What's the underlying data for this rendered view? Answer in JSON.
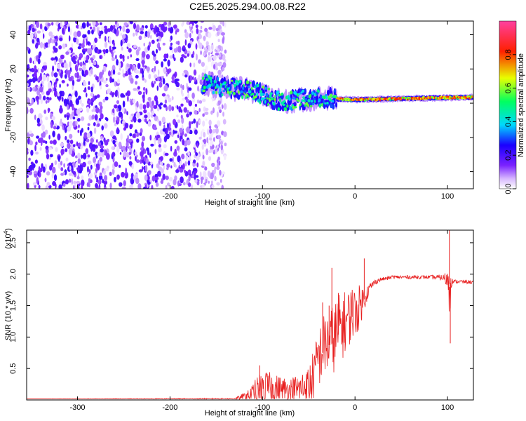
{
  "title": "C2E5.2025.294.00.08.R22",
  "chart_data": [
    {
      "type": "heatmap",
      "title": "C2E5.2025.294.00.08.R22",
      "xlabel": "Height of straight line (km)",
      "ylabel": "Frequency (Hz)",
      "xlim": [
        -355,
        128
      ],
      "ylim": [
        -50,
        48
      ],
      "x_ticks": [
        -300,
        -200,
        -100,
        0,
        100
      ],
      "y_ticks": [
        -40,
        -20,
        0,
        20,
        40
      ],
      "colorbar": {
        "label": "Normalized spectral amplitude",
        "range": [
          0,
          1
        ],
        "ticks": [
          0.0,
          0.2,
          0.4,
          0.6,
          0.8
        ],
        "tick_labels": [
          "0.0",
          "0.2",
          "0.4",
          "0.6",
          "0.8"
        ],
        "colors": [
          "#ffffff",
          "#d8b8ff",
          "#7a22ff",
          "#1a00ff",
          "#00d8ff",
          "#00ff60",
          "#e8ff00",
          "#ff2000",
          "#ff40a0"
        ]
      },
      "regions": [
        {
          "name": "noise",
          "x": [
            -355,
            -140
          ],
          "y": [
            -50,
            48
          ],
          "amplitude": [
            0.02,
            0.22
          ]
        },
        {
          "name": "signal",
          "x": [
            -165,
            128
          ],
          "center_freq_hz": [
            [
              -165,
              12
            ],
            [
              -140,
              9
            ],
            [
              -120,
              8
            ],
            [
              -100,
              5
            ],
            [
              -80,
              1
            ],
            [
              -60,
              2
            ],
            [
              -40,
              3
            ],
            [
              -20,
              2.5
            ],
            [
              0,
              2
            ],
            [
              40,
              2.5
            ],
            [
              80,
              3
            ],
            [
              128,
              3.5
            ]
          ],
          "peak_amplitude": 0.9
        }
      ]
    },
    {
      "type": "line",
      "xlabel": "Height of straight line (km)",
      "ylabel": "SNR (10 * v/v)",
      "y_multiplier_label": "(x10",
      "y_multiplier_exp": "4",
      "y_multiplier_close": ")",
      "xlim": [
        -355,
        128
      ],
      "ylim": [
        0,
        2.7
      ],
      "x_ticks": [
        -300,
        -200,
        -100,
        0,
        100
      ],
      "y_ticks": [
        0.5,
        1.0,
        1.5,
        2.0,
        2.5
      ],
      "y_tick_labels": [
        "0.5",
        "1.0",
        "1.5",
        "2.0",
        "2.5"
      ],
      "color": "#e82020",
      "series": [
        {
          "name": "SNR",
          "envelope": {
            "x": [
              -355,
              -130,
              -115,
              -105,
              -100,
              -90,
              -80,
              -70,
              -60,
              -50,
              -45,
              -40,
              -35,
              -30,
              -25,
              -20,
              -15,
              -10,
              -5,
              0,
              5,
              10,
              15,
              20,
              25,
              30,
              35,
              40,
              60,
              80,
              95,
              100,
              102,
              104,
              106,
              110,
              128
            ],
            "base": [
              0.02,
              0.02,
              0.05,
              0.12,
              0.18,
              0.15,
              0.16,
              0.14,
              0.15,
              0.2,
              0.35,
              0.6,
              0.75,
              0.85,
              0.9,
              1.0,
              1.1,
              1.2,
              1.3,
              1.35,
              1.45,
              1.6,
              1.75,
              1.85,
              1.9,
              1.92,
              1.93,
              1.95,
              1.95,
              1.95,
              1.94,
              1.9,
              1.85,
              1.87,
              1.88,
              1.88,
              1.87
            ],
            "spread": [
              0.0,
              0.01,
              0.1,
              0.25,
              0.3,
              0.25,
              0.2,
              0.2,
              0.25,
              0.35,
              0.4,
              0.45,
              0.55,
              0.5,
              0.55,
              0.6,
              0.55,
              0.5,
              0.45,
              0.4,
              0.35,
              0.2,
              0.1,
              0.05,
              0.04,
              0.03,
              0.03,
              0.03,
              0.03,
              0.03,
              0.05,
              0.15,
              0.9,
              0.1,
              0.03,
              0.03,
              0.03
            ]
          },
          "spikes": [
            [
              10,
              2.25
            ],
            [
              -25,
              2.1
            ],
            [
              -35,
              1.55
            ],
            [
              -103,
              0.55
            ],
            [
              102,
              2.7
            ],
            [
              103,
              0.9
            ],
            [
              -3,
              1.75
            ],
            [
              -18,
              1.7
            ],
            [
              -28,
              1.5
            ]
          ]
        }
      ]
    }
  ]
}
